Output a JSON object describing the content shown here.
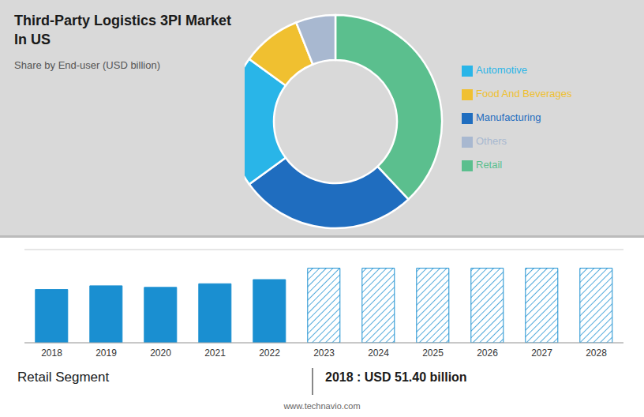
{
  "chart_data": [
    {
      "type": "pie",
      "title": "Third-Party Logistics 3Pl Market\nIn US",
      "subtitle": "Share by End-user (USD billion)",
      "categories": [
        "Retail",
        "Manufacturing",
        "Automotive",
        "Food And Beverages",
        "Others"
      ],
      "values": [
        38,
        27,
        20,
        9,
        6
      ],
      "colors": [
        "#5bbf8e",
        "#1f6dbf",
        "#29b5e8",
        "#f0c030",
        "#a8b8d0"
      ],
      "legend": "right"
    },
    {
      "type": "bar",
      "categories": [
        "2018",
        "2019",
        "2020",
        "2021",
        "2022",
        "2023",
        "2024",
        "2025",
        "2026",
        "2027",
        "2028"
      ],
      "series": [
        {
          "color": "#1a8fd1",
          "line_style": "solid",
          "values": [
            51.4,
            55.0,
            53.5,
            57.0,
            61.0,
            null,
            null,
            null,
            null,
            null,
            null
          ]
        },
        {
          "color": "#1a8fd1",
          "line_style": "hatched",
          "values": [
            null,
            null,
            null,
            null,
            null,
            72.0,
            72.0,
            72.0,
            72.0,
            72.0,
            72.0
          ]
        }
      ],
      "ylim": [
        0,
        90
      ],
      "yticks": [
        0,
        30,
        60,
        90
      ],
      "grid": true,
      "tick_labels": "x",
      "annotations": [
        "Retail Segment",
        "2018 : USD 51.40 billion",
        "www.technavio.com"
      ]
    }
  ]
}
